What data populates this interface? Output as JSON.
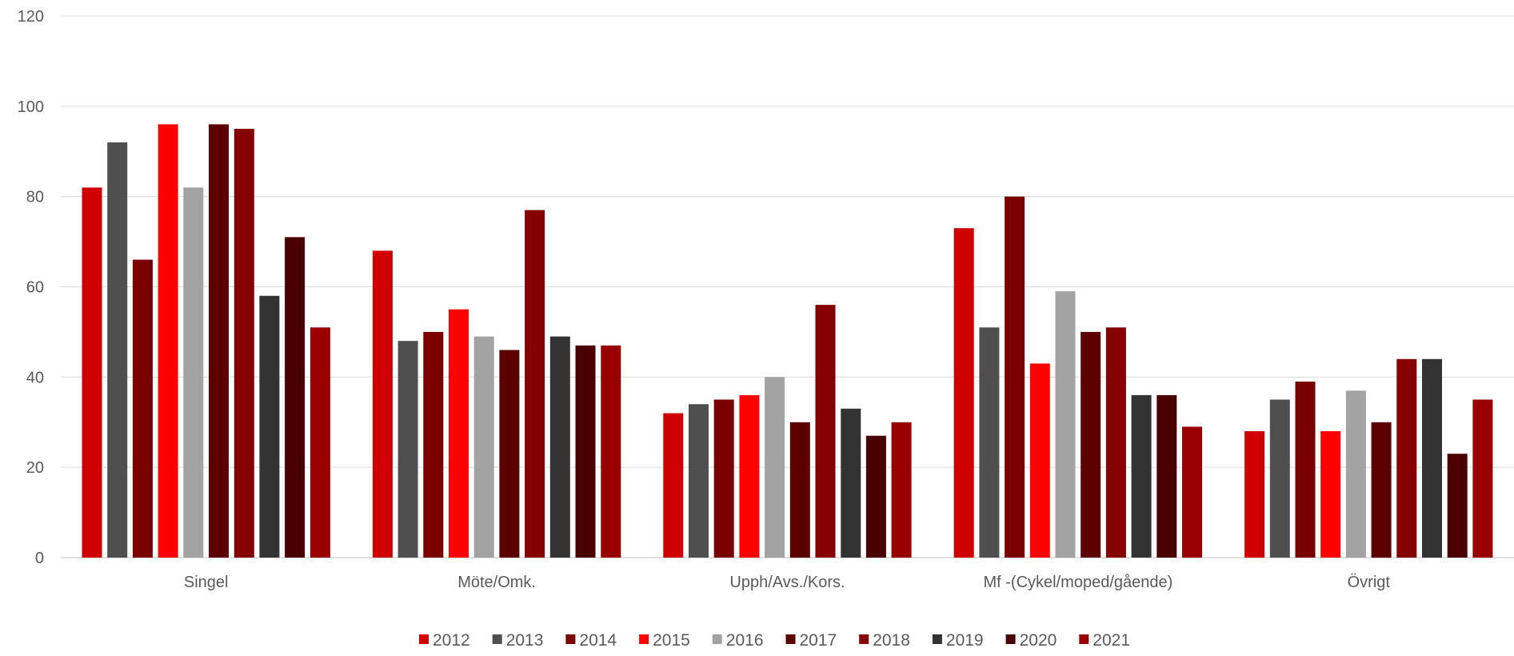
{
  "chart_data": {
    "type": "bar",
    "title": "",
    "xlabel": "",
    "ylabel": "",
    "ylim": [
      0,
      120
    ],
    "yticks": [
      0,
      20,
      40,
      60,
      80,
      100,
      120
    ],
    "grid": true,
    "legend_position": "bottom",
    "categories": [
      "Singel",
      "Möte/Omk.",
      "Upph/Avs./Kors.",
      "Mf -(Cykel/moped/gående)",
      "Övrigt"
    ],
    "series": [
      {
        "name": "2012",
        "color": "#D00000",
        "values": [
          82,
          68,
          32,
          73,
          28
        ]
      },
      {
        "name": "2013",
        "color": "#4F4F4F",
        "values": [
          92,
          48,
          34,
          51,
          35
        ]
      },
      {
        "name": "2014",
        "color": "#7A0000",
        "values": [
          66,
          50,
          35,
          80,
          39
        ]
      },
      {
        "name": "2015",
        "color": "#FF0000",
        "values": [
          96,
          55,
          36,
          43,
          28
        ]
      },
      {
        "name": "2016",
        "color": "#A3A3A3",
        "values": [
          82,
          49,
          40,
          59,
          37
        ]
      },
      {
        "name": "2017",
        "color": "#5C0000",
        "values": [
          96,
          46,
          30,
          50,
          30
        ]
      },
      {
        "name": "2018",
        "color": "#850000",
        "values": [
          95,
          77,
          56,
          51,
          44
        ]
      },
      {
        "name": "2019",
        "color": "#333333",
        "values": [
          58,
          49,
          33,
          36,
          44
        ]
      },
      {
        "name": "2020",
        "color": "#4A0000",
        "values": [
          71,
          47,
          27,
          36,
          23
        ]
      },
      {
        "name": "2021",
        "color": "#990000",
        "values": [
          51,
          47,
          30,
          29,
          35
        ]
      }
    ]
  }
}
